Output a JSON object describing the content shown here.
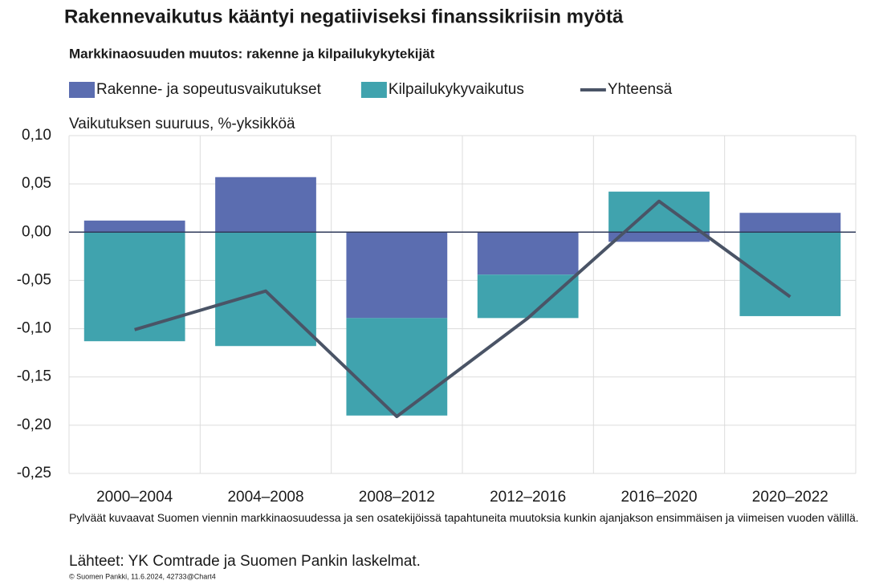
{
  "chart_data": {
    "type": "stacked-bar-line",
    "title": "Rakennevaikutus kääntyi negatiiviseksi finanssikriisin myötä",
    "subtitle": "Markkinaosuuden muutos: rakenne ja kilpailukykytekijät",
    "y_axis_label": "Vaikutuksen suuruus, %-yksikköä",
    "categories": [
      "2000–2004",
      "2004–2008",
      "2008–2012",
      "2012–2016",
      "2016–2020",
      "2020–2022"
    ],
    "series": [
      {
        "name": "Rakenne- ja sopeutusvaikutukset",
        "color": "#5b6db0",
        "kind": "bar",
        "values": [
          0.012,
          0.057,
          -0.089,
          -0.044,
          -0.01,
          0.02
        ]
      },
      {
        "name": "Kilpailukykyvaikutus",
        "color": "#40a3ae",
        "kind": "bar",
        "values": [
          -0.113,
          -0.118,
          -0.101,
          -0.045,
          0.042,
          -0.087
        ]
      },
      {
        "name": "Yhteensä",
        "color": "#4a5466",
        "kind": "line",
        "values": [
          -0.101,
          -0.061,
          -0.191,
          -0.089,
          0.032,
          -0.067
        ]
      }
    ],
    "ylim": [
      -0.25,
      0.1
    ],
    "yticks": [
      {
        "value": -0.25,
        "label": "-0,25"
      },
      {
        "value": -0.2,
        "label": "-0,20"
      },
      {
        "value": -0.15,
        "label": "-0,15"
      },
      {
        "value": -0.1,
        "label": "-0,10"
      },
      {
        "value": -0.05,
        "label": "-0,05"
      },
      {
        "value": 0,
        "label": "0,00"
      },
      {
        "value": 0.05,
        "label": "0,05"
      },
      {
        "value": 0.1,
        "label": "0,10"
      }
    ],
    "grid": true,
    "legend": "top",
    "note": "Pylväät kuvaavat Suomen viennin markkinaosuudessa ja sen osatekijöissä tapahtuneita muutoksia kunkin ajanjakson ensimmäisen ja viimeisen vuoden välillä.",
    "source": "Lähteet: YK Comtrade ja Suomen Pankin laskelmat.",
    "credit": "© Suomen Pankki, 11.6.2024, 42733@Chart4"
  }
}
